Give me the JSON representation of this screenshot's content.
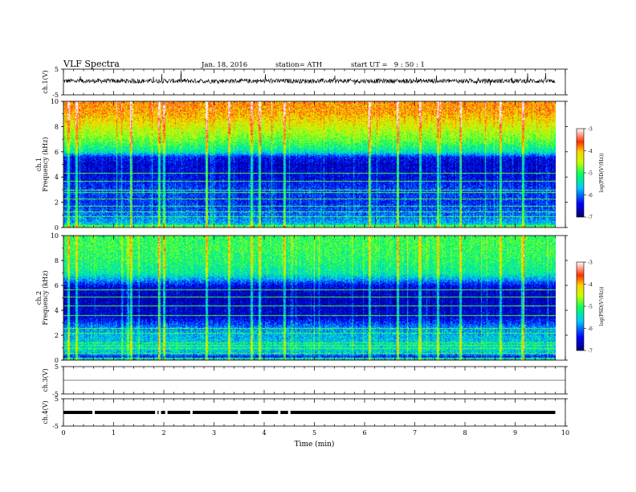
{
  "header": {
    "title": "VLF Spectra",
    "date": "Jan. 18, 2016",
    "station": "station= ATH",
    "start_ut": "start UT =   9 : 50 : 1"
  },
  "x_axis": {
    "label": "Time (min)",
    "range": [
      0,
      10
    ],
    "ticks": [
      "0",
      "1",
      "2",
      "3",
      "4",
      "5",
      "6",
      "7",
      "8",
      "9",
      "10"
    ],
    "data_end": 9.8
  },
  "colorbar": {
    "label": "log(PSD(V²/Hz))",
    "range": [
      -7,
      -3
    ],
    "ticks": [
      "-7",
      "-6",
      "-5",
      "-4",
      "-3"
    ]
  },
  "colors": {
    "waveform": "#000000",
    "axis": "#000000",
    "background": "#ffffff"
  },
  "chart_data": [
    {
      "type": "line",
      "panel": "ch1-waveform",
      "ylabel": "ch.1(V)",
      "ylim": [
        -5,
        5
      ],
      "yticks": [
        "5",
        "-5"
      ],
      "x_range": [
        0,
        9.8
      ],
      "series": [
        {
          "values_description_note": "",
          "baseline": 0.4,
          "noise_amplitude": 0.9,
          "spike_amplitude": 2.5
        }
      ]
    },
    {
      "type": "heatmap",
      "panel": "ch1-spectrogram",
      "ylabel": "ch.1 Frequency (kHz)",
      "ylim": [
        0,
        10
      ],
      "yticks": [
        "0",
        "2",
        "4",
        "6",
        "8",
        "10"
      ],
      "x_range": [
        0,
        9.8
      ],
      "z_range": [
        -7,
        -3
      ],
      "psd_profile": {
        "freq_khz": [
          0,
          0.3,
          0.5,
          1,
          2,
          3,
          4,
          5,
          5.6,
          6,
          6.5,
          7,
          7.5,
          8,
          8.5,
          9,
          9.5,
          10
        ],
        "log_psd": [
          -4.6,
          -5.6,
          -5.8,
          -6.0,
          -6.3,
          -6.2,
          -6.5,
          -6.6,
          -6.4,
          -5.4,
          -5.1,
          -4.8,
          -4.6,
          -4.4,
          -4.2,
          -4.0,
          -3.9,
          -3.8
        ]
      },
      "horizontal_lines_khz": [
        0.2,
        0.9,
        1.3,
        1.7,
        2.3,
        2.8,
        3.0,
        3.7,
        4.3
      ],
      "vertical_burst_times_min": [
        0.1,
        0.25,
        1.35,
        1.9,
        2.0,
        2.85,
        3.3,
        3.75,
        3.9,
        4.4,
        6.1,
        6.65,
        7.1,
        7.45,
        7.9,
        8.7,
        9.15
      ]
    },
    {
      "type": "heatmap",
      "panel": "ch2-spectrogram",
      "ylabel": "ch.2 Frequency (kHz)",
      "ylim": [
        0,
        10
      ],
      "yticks": [
        "0",
        "2",
        "4",
        "6",
        "8",
        "10"
      ],
      "x_range": [
        0,
        9.8
      ],
      "z_range": [
        -7,
        -3
      ],
      "psd_profile": {
        "freq_khz": [
          0,
          0.3,
          0.5,
          1,
          1.5,
          2,
          2.5,
          3,
          3.5,
          4,
          5,
          6,
          6.5,
          7,
          8,
          9,
          10
        ],
        "log_psd": [
          -5.2,
          -6.4,
          -5.8,
          -5.4,
          -5.6,
          -5.7,
          -5.8,
          -6.2,
          -6.6,
          -6.6,
          -6.7,
          -6.5,
          -5.8,
          -5.3,
          -5.1,
          -5.0,
          -5.0
        ]
      },
      "horizontal_lines_khz": [
        0.2,
        0.6,
        1.0,
        1.2,
        1.4,
        2.2,
        2.6,
        3.6,
        4.4,
        5.1,
        5.7
      ],
      "vertical_burst_times_min": [
        0.1,
        0.25,
        1.35,
        1.9,
        2.0,
        2.85,
        3.3,
        3.75,
        3.9,
        4.4,
        6.1,
        6.65,
        7.1,
        7.45,
        7.9,
        8.7,
        9.15
      ]
    },
    {
      "type": "line",
      "panel": "ch3-waveform",
      "ylabel": "ch.3(V)",
      "ylim": [
        -5,
        5
      ],
      "yticks": [
        "5",
        "-5"
      ],
      "x_range": [
        0,
        9.8
      ],
      "series": [
        {
          "baseline": 0
        }
      ]
    },
    {
      "type": "line",
      "panel": "ch4-waveform",
      "ylabel": "ch.4(V)",
      "ylim": [
        -5,
        5
      ],
      "yticks": [
        "5",
        "-5"
      ],
      "x_range": [
        0,
        9.8
      ],
      "series": [
        {
          "baseline": 0,
          "gap_times_min": [
            0.6,
            1.85,
            1.92,
            2.05,
            2.55,
            3.5,
            3.92,
            4.3,
            4.5
          ]
        }
      ]
    }
  ]
}
